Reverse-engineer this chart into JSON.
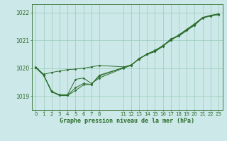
{
  "xlabel": "Graphe pression niveau de la mer (hPa)",
  "background_color": "#cce8e8",
  "grid_color": "#99ccbb",
  "line_color": "#2d6e2d",
  "ylim": [
    1018.5,
    1022.3
  ],
  "xlim": [
    -0.5,
    23.5
  ],
  "yticks": [
    1019,
    1020,
    1021,
    1022
  ],
  "xticks": [
    0,
    1,
    2,
    3,
    4,
    5,
    6,
    7,
    8,
    11,
    12,
    13,
    14,
    15,
    16,
    17,
    18,
    19,
    20,
    21,
    22,
    23
  ],
  "series1": {
    "x": [
      0,
      1,
      2,
      3,
      4,
      5,
      6,
      7,
      8,
      11,
      12,
      13,
      14,
      15,
      16,
      17,
      18,
      19,
      20,
      21,
      22,
      23
    ],
    "y": [
      1020.05,
      1019.78,
      1019.85,
      1019.9,
      1019.95,
      1019.97,
      1020.0,
      1020.05,
      1020.1,
      1020.05,
      1020.1,
      1020.35,
      1020.5,
      1020.65,
      1020.8,
      1021.05,
      1021.15,
      1021.35,
      1021.55,
      1021.82,
      1021.9,
      1021.95
    ]
  },
  "series2": {
    "x": [
      0,
      1,
      2,
      3,
      4,
      5,
      6,
      7,
      8,
      11,
      12,
      13,
      14,
      15,
      16,
      17,
      18,
      19,
      20,
      21,
      22,
      23
    ],
    "y": [
      1020.02,
      1019.75,
      1019.15,
      1019.05,
      1019.05,
      1019.6,
      1019.65,
      1019.45,
      1019.65,
      1020.0,
      1020.1,
      1020.35,
      1020.5,
      1020.6,
      1020.78,
      1021.05,
      1021.18,
      1021.38,
      1021.58,
      1021.82,
      1021.88,
      1021.93
    ]
  },
  "series3": {
    "x": [
      0,
      1,
      2,
      3,
      4,
      5,
      6,
      7,
      8,
      11,
      12,
      13,
      14,
      15,
      16,
      17,
      18,
      19,
      20,
      21,
      22,
      23
    ],
    "y": [
      1020.02,
      1019.75,
      1019.15,
      1019.02,
      1019.02,
      1019.2,
      1019.4,
      1019.42,
      1019.72,
      1020.02,
      1020.12,
      1020.32,
      1020.52,
      1020.62,
      1020.82,
      1021.02,
      1021.2,
      1021.4,
      1021.6,
      1021.82,
      1021.9,
      1021.95
    ]
  },
  "series4": {
    "x": [
      0,
      1,
      2,
      3,
      4,
      5,
      6,
      7,
      8,
      11,
      12,
      13,
      14,
      15,
      16,
      17,
      18,
      19,
      20,
      21,
      22,
      23
    ],
    "y": [
      1020.03,
      1019.75,
      1019.18,
      1019.03,
      1019.03,
      1019.3,
      1019.45,
      1019.42,
      1019.75,
      1020.02,
      1020.12,
      1020.33,
      1020.5,
      1020.6,
      1020.8,
      1021.0,
      1021.18,
      1021.38,
      1021.55,
      1021.8,
      1021.88,
      1021.93
    ]
  }
}
